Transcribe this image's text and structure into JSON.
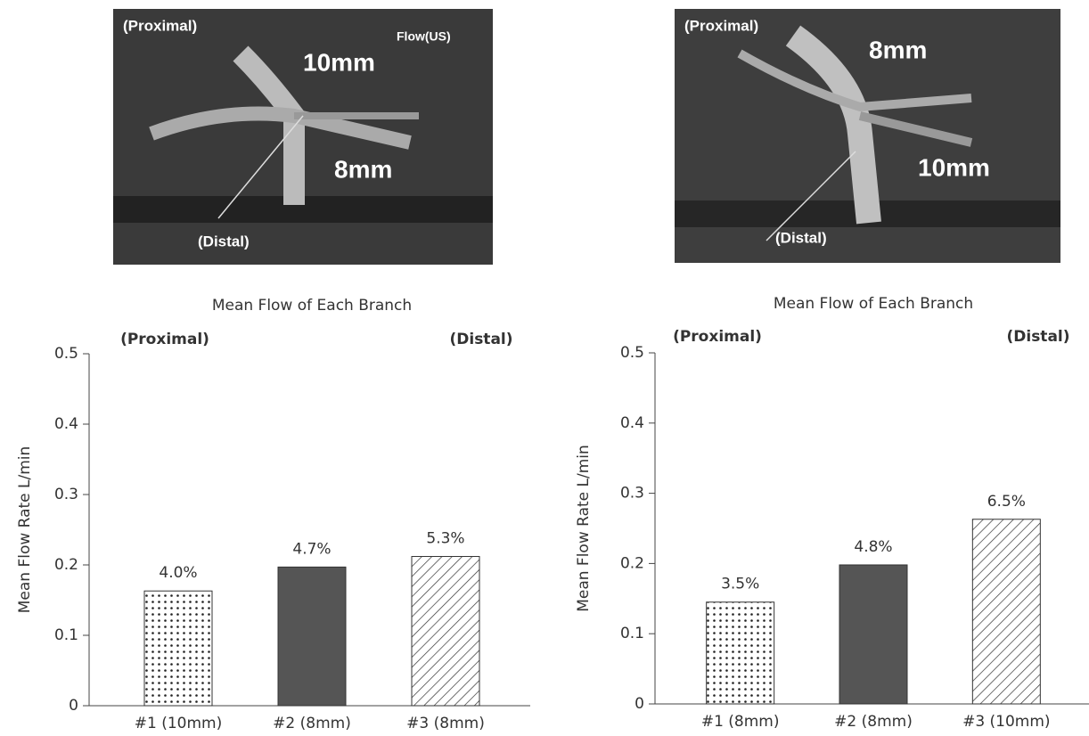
{
  "photos": [
    {
      "labels": [
        "(Proximal)",
        "Flow(US)",
        "10mm",
        "8mm",
        "(Distal)"
      ]
    },
    {
      "labels": [
        "(Proximal)",
        "8mm",
        "10mm",
        "(Distal)"
      ]
    }
  ],
  "chart_data": [
    {
      "type": "bar",
      "title": "Mean Flow of Each Branch",
      "y_label": "Mean Flow Rate L/min",
      "annotations": [
        "(Proximal)",
        "(Distal)"
      ],
      "categories": [
        "#1 (10mm)",
        "#2 (8mm)",
        "#3 (8mm)"
      ],
      "values": [
        0.163,
        0.197,
        0.212
      ],
      "bar_labels": [
        "4.0%",
        "4.7%",
        "5.3%"
      ],
      "patterns": [
        "dots",
        "solid",
        "hatch"
      ],
      "color": "#555555",
      "ylim": [
        0,
        0.5
      ],
      "yticks": [
        0,
        0.1,
        0.2,
        0.3,
        0.4,
        0.5
      ]
    },
    {
      "type": "bar",
      "title": "Mean Flow of Each Branch",
      "y_label": "Mean Flow Rate L/min",
      "annotations": [
        "(Proximal)",
        "(Distal)"
      ],
      "categories": [
        "#1 (8mm)",
        "#2 (8mm)",
        "#3 (10mm)"
      ],
      "values": [
        0.145,
        0.198,
        0.263
      ],
      "bar_labels": [
        "3.5%",
        "4.8%",
        "6.5%"
      ],
      "patterns": [
        "dots",
        "solid",
        "hatch"
      ],
      "color": "#555555",
      "ylim": [
        0,
        0.5
      ],
      "yticks": [
        0,
        0.1,
        0.2,
        0.3,
        0.4,
        0.5
      ]
    }
  ]
}
